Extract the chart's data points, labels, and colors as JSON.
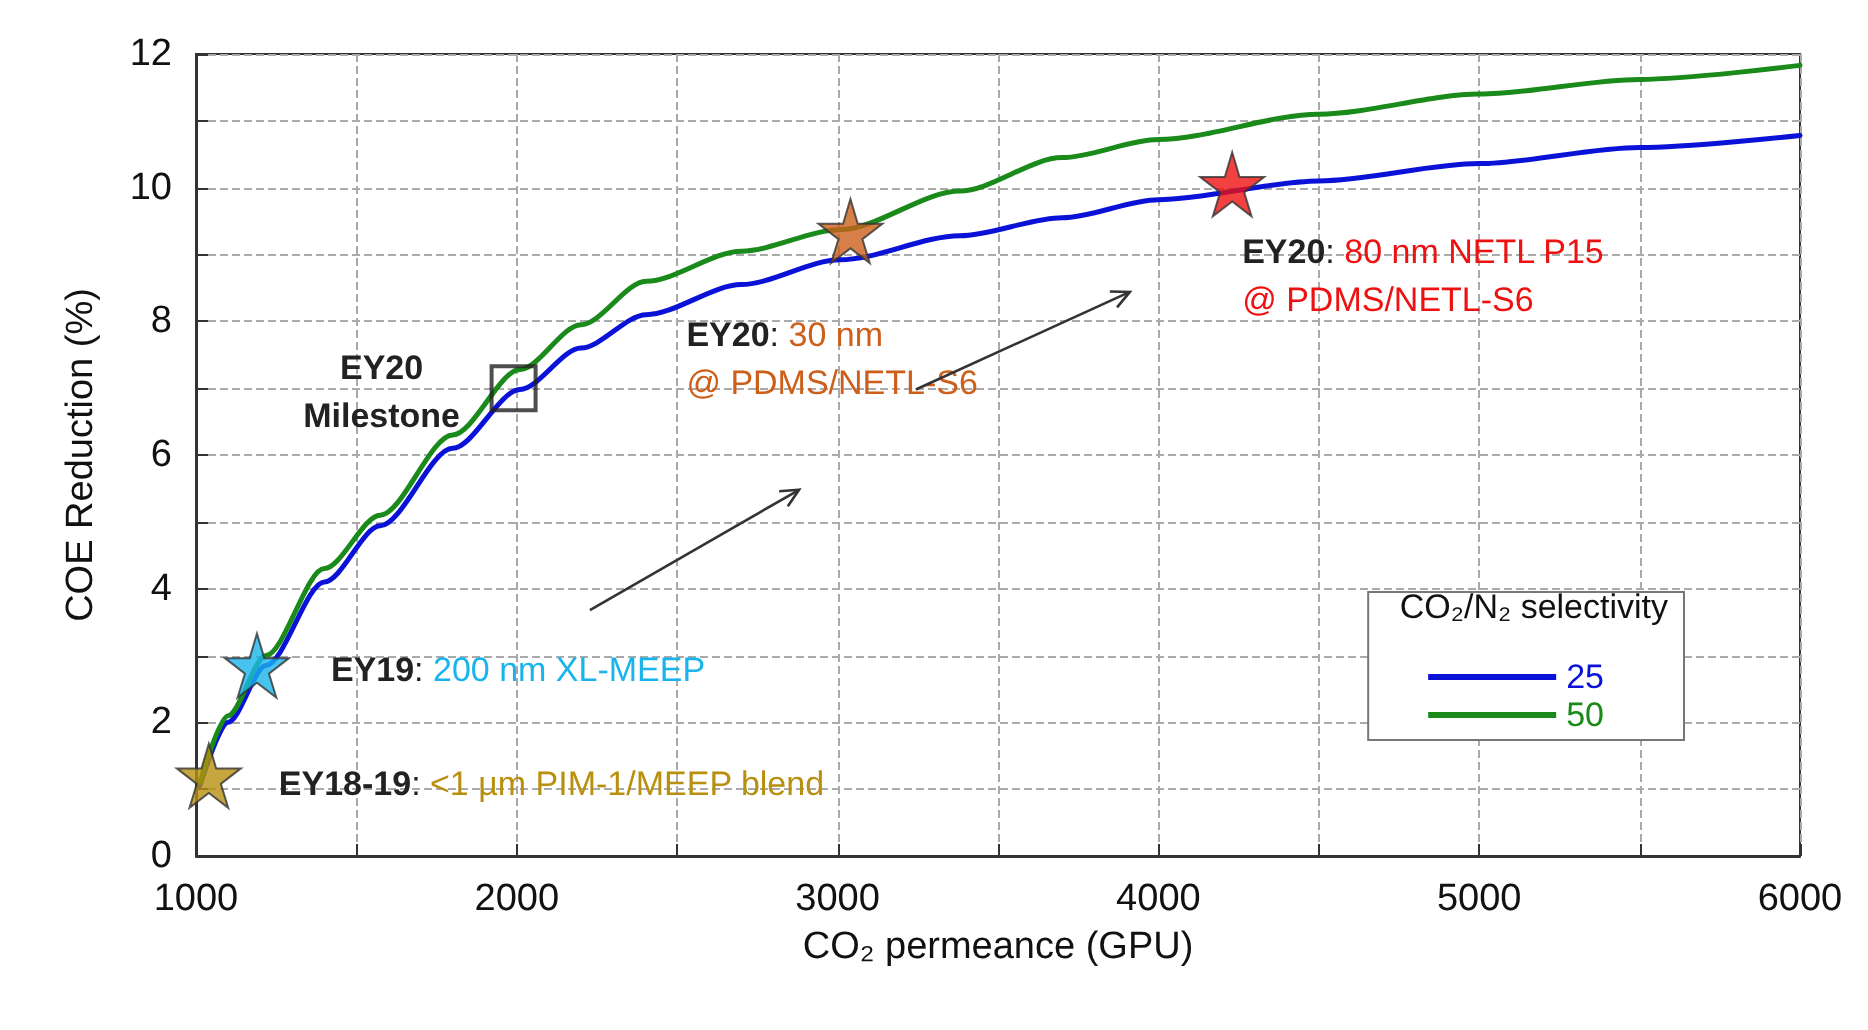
{
  "chart_data": {
    "type": "line",
    "xlabel": "CO₂ permeance (GPU)",
    "ylabel": "COE Reduction (%)",
    "legend_title": "CO₂/N₂ selectivity",
    "legend": "bottom right",
    "grid": true,
    "line_style": "solid",
    "marker": "none",
    "xlim": [
      1000,
      6000
    ],
    "ylim": [
      0,
      12
    ],
    "xticks": [
      1000,
      {
        "value": 1500,
        "label": null
      },
      2000,
      {
        "value": 2500,
        "label": null
      },
      3000,
      {
        "value": 3500,
        "label": null
      },
      4000,
      {
        "value": 4500,
        "label": null
      },
      5000,
      {
        "value": 5500,
        "label": null
      },
      6000
    ],
    "yticks": [
      0,
      {
        "value": 1,
        "label": null
      },
      2,
      {
        "value": 3,
        "label": null
      },
      4,
      {
        "value": 5,
        "label": null
      },
      6,
      {
        "value": 7,
        "label": null
      },
      8,
      {
        "value": 9,
        "label": null
      },
      10,
      {
        "value": 11,
        "label": null
      },
      12
    ],
    "series": [
      {
        "name": "25",
        "color": "#0a12d8",
        "x": [
          1012,
          1100,
          1218,
          1400,
          1574,
          1800,
          2010,
          2200,
          2403,
          2700,
          3007,
          3381,
          3700,
          4000,
          4500,
          5000,
          5500,
          6000
        ],
        "values": [
          1.05,
          2.0,
          2.85,
          4.1,
          4.94,
          6.1,
          6.98,
          7.6,
          8.1,
          8.55,
          8.92,
          9.28,
          9.55,
          9.82,
          10.1,
          10.36,
          10.6,
          10.78
        ]
      },
      {
        "name": "50",
        "color": "#1a8a1a",
        "x": [
          1012,
          1100,
          1218,
          1400,
          1574,
          1800,
          2010,
          2200,
          2403,
          2700,
          3007,
          3381,
          3700,
          4000,
          4500,
          5000,
          5500,
          6000
        ],
        "values": [
          1.1,
          2.1,
          3.0,
          4.3,
          5.1,
          6.3,
          7.28,
          7.95,
          8.6,
          9.05,
          9.37,
          9.95,
          10.45,
          10.72,
          11.1,
          11.4,
          11.62,
          11.83
        ]
      },
      {
        "type": "scatter",
        "marker": "star",
        "color": "#b8900f",
        "x": [
          1040
        ],
        "values": [
          1.2
        ]
      },
      {
        "type": "scatter",
        "marker": "star",
        "color": "#19b4ec",
        "x": [
          1190
        ],
        "values": [
          2.85
        ]
      },
      {
        "type": "scatter",
        "marker": "star",
        "color": "#cc5f1a",
        "x": [
          3040
        ],
        "values": [
          9.35
        ]
      },
      {
        "type": "scatter",
        "marker": "star",
        "color": "#ee1111",
        "x": [
          4230
        ],
        "values": [
          10.05
        ]
      },
      {
        "type": "scatter",
        "marker": "square",
        "color": "#222222",
        "x": [
          1990
        ],
        "values": [
          7.0
        ]
      }
    ],
    "annotations": [
      {
        "text": "EY18-19: <1 µm PIM-1/MEEP blend",
        "x": 1040,
        "y": 1.2
      },
      {
        "text": "EY19: 200 nm XL-MEEP",
        "x": 1190,
        "y": 2.85
      },
      {
        "text": "EY20: 30 nm\n@ PDMS/NETL-S6",
        "x": 3040,
        "y": 9.35
      },
      {
        "text": "EY20: 80 nm NETL P15\n@ PDMS/NETL-S6",
        "x": 4230,
        "y": 10.05
      },
      {
        "text": "EY20\nMilestone",
        "x": 1990,
        "y": 7.0
      }
    ]
  }
}
